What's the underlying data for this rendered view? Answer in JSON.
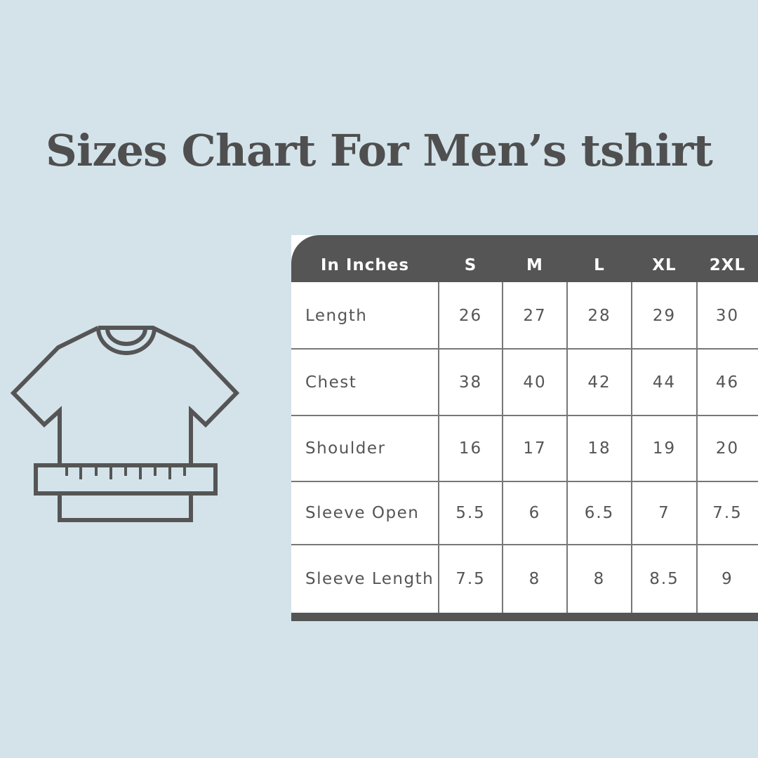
{
  "title": "Sizes Chart For Men’s tshirt",
  "colors": {
    "background": "#d4e3ea",
    "dark": "#555555"
  },
  "icon": "tshirt-with-measuring-tape-icon",
  "table": {
    "header": [
      "In Inches",
      "S",
      "M",
      "L",
      "XL",
      "2XL"
    ],
    "rows": [
      {
        "label": "Length",
        "values": [
          "26",
          "27",
          "28",
          "29",
          "30"
        ]
      },
      {
        "label": "Chest",
        "values": [
          "38",
          "40",
          "42",
          "44",
          "46"
        ]
      },
      {
        "label": "Shoulder",
        "values": [
          "16",
          "17",
          "18",
          "19",
          "20"
        ]
      },
      {
        "label": "Sleeve Open",
        "values": [
          "5.5",
          "6",
          "6.5",
          "7",
          "7.5"
        ]
      },
      {
        "label": "Sleeve Length",
        "values": [
          "7.5",
          "8",
          "8",
          "8.5",
          "9"
        ]
      }
    ]
  }
}
